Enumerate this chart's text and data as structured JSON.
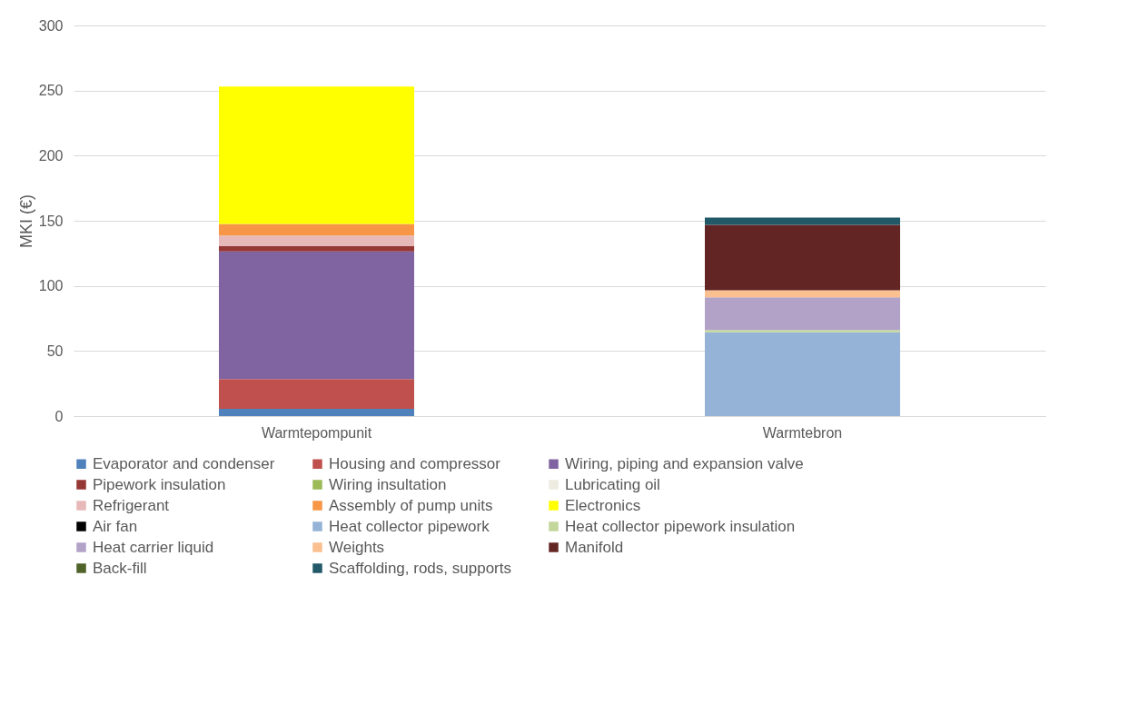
{
  "chart_data": {
    "type": "bar",
    "stacked": true,
    "ylabel": "MKI (€)",
    "categories": [
      "Warmtepompunit",
      "Warmtebron"
    ],
    "ylim": [
      0,
      300
    ],
    "yticks": [
      0,
      50,
      100,
      150,
      200,
      250,
      300
    ],
    "grid": "y",
    "legend": "bottom",
    "series": [
      {
        "name": "Evaporator and condenser",
        "color": "#4f81bd",
        "values": [
          5.5,
          null
        ]
      },
      {
        "name": "Housing and compressor",
        "color": "#c0504d",
        "values": [
          23,
          null
        ]
      },
      {
        "name": "Wiring, piping and expansion valve",
        "color": "#8064a2",
        "values": [
          98,
          null
        ]
      },
      {
        "name": "Pipework insulation",
        "color": "#953735",
        "values": [
          4,
          null
        ]
      },
      {
        "name": "Wiring insultation",
        "color": "#9bbb59",
        "values": [
          null,
          null
        ]
      },
      {
        "name": "Lubricating oil",
        "color": "#eeece1",
        "values": [
          null,
          null
        ]
      },
      {
        "name": "Refrigerant",
        "color": "#e6b9b8",
        "values": [
          8.2,
          null
        ]
      },
      {
        "name": "Assembly of pump units",
        "color": "#f79646",
        "values": [
          8.8,
          null
        ]
      },
      {
        "name": "Electronics",
        "color": "#ffff00",
        "values": [
          105.6,
          null
        ]
      },
      {
        "name": "Air fan",
        "color": "#000000",
        "values": [
          null,
          null
        ]
      },
      {
        "name": "Heat collector pipework",
        "color": "#95b3d7",
        "values": [
          null,
          64.3
        ]
      },
      {
        "name": "Heat collector pipework insulation",
        "color": "#c3d69b",
        "values": [
          null,
          1.8
        ]
      },
      {
        "name": "Heat carrier liquid",
        "color": "#b3a2c7",
        "values": [
          null,
          25.1
        ]
      },
      {
        "name": "Weights",
        "color": "#fac090",
        "values": [
          null,
          5.4
        ]
      },
      {
        "name": "Manifold",
        "color": "#632523",
        "values": [
          null,
          50.2
        ]
      },
      {
        "name": "Back-fill",
        "color": "#4f6228",
        "values": [
          null,
          null
        ]
      },
      {
        "name": "Scaffolding, rods, supports",
        "color": "#215968",
        "values": [
          null,
          5.6
        ]
      }
    ]
  }
}
